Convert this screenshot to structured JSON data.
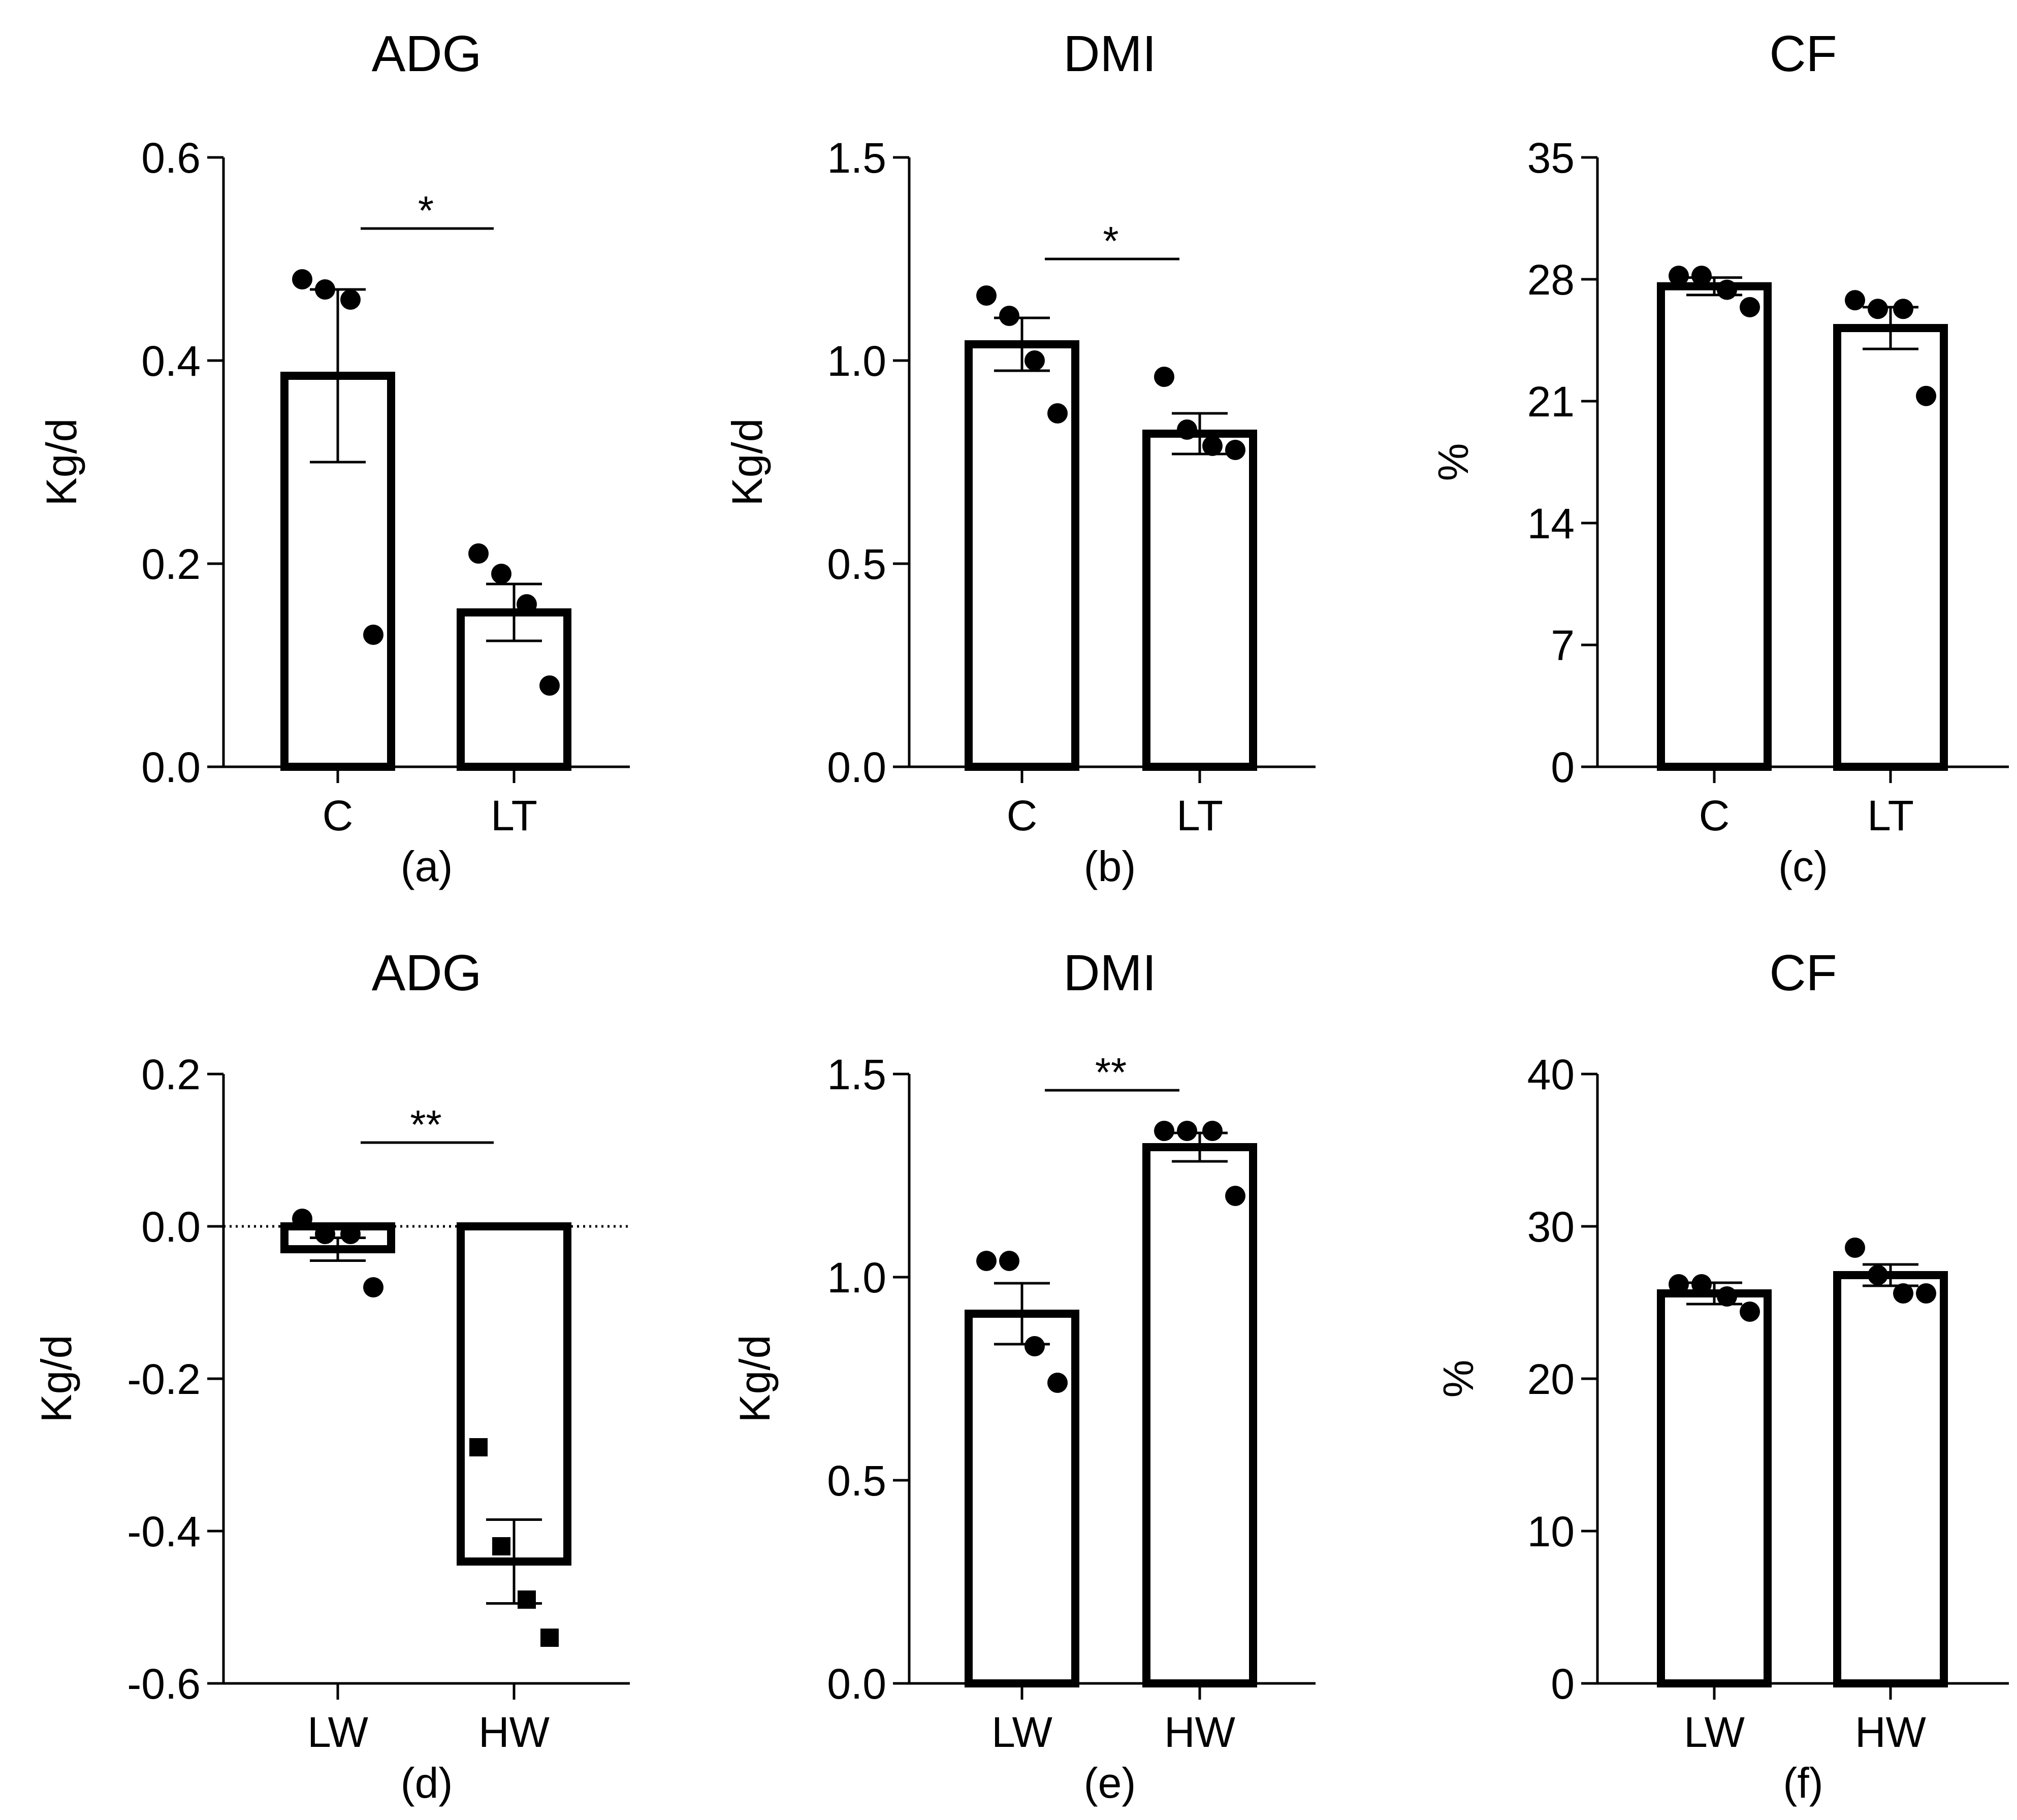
{
  "chart_data": [
    {
      "type": "bar",
      "panel": "(a)",
      "title": "ADG",
      "ylabel": "Kg/d",
      "categories": [
        "C",
        "LT"
      ],
      "values": [
        0.385,
        0.152
      ],
      "errors": [
        0.085,
        0.028
      ],
      "points": [
        [
          0.48,
          0.47,
          0.46,
          0.13
        ],
        [
          0.21,
          0.19,
          0.16,
          0.08
        ]
      ],
      "marker": [
        "circle",
        "circle"
      ],
      "ylim": [
        0,
        0.6
      ],
      "yticks": [
        0.0,
        0.2,
        0.4,
        0.6
      ],
      "ytick_labels": [
        "0.0",
        "0.2",
        "0.4",
        "0.6"
      ],
      "significance": {
        "label": "*",
        "y": 0.53
      }
    },
    {
      "type": "bar",
      "panel": "(b)",
      "title": "DMI",
      "ylabel": "Kg/d",
      "categories": [
        "C",
        "LT"
      ],
      "values": [
        1.04,
        0.82
      ],
      "errors": [
        0.065,
        0.05
      ],
      "points": [
        [
          1.16,
          1.11,
          1.0,
          0.87
        ],
        [
          0.96,
          0.83,
          0.79,
          0.78
        ]
      ],
      "marker": [
        "circle",
        "circle"
      ],
      "ylim": [
        0,
        1.5
      ],
      "yticks": [
        0.0,
        0.5,
        1.0,
        1.5
      ],
      "ytick_labels": [
        "0.0",
        "0.5",
        "1.0",
        "1.5"
      ],
      "significance": {
        "label": "*",
        "y": 1.25
      }
    },
    {
      "type": "bar",
      "panel": "(c)",
      "title": "CF",
      "ylabel": "%",
      "categories": [
        "C",
        "LT"
      ],
      "values": [
        27.6,
        25.2
      ],
      "errors": [
        0.5,
        1.2
      ],
      "points": [
        [
          28.2,
          28.2,
          27.4,
          26.4
        ],
        [
          26.8,
          26.3,
          26.3,
          21.3
        ]
      ],
      "marker": [
        "circle",
        "circle"
      ],
      "ylim": [
        0,
        35
      ],
      "yticks": [
        0,
        7,
        14,
        21,
        28,
        35
      ],
      "ytick_labels": [
        "0",
        "7",
        "14",
        "21",
        "28",
        "35"
      ],
      "significance": null
    },
    {
      "type": "bar",
      "panel": "(d)",
      "title": "ADG",
      "ylabel": "Kg/d",
      "categories": [
        "LW",
        "HW"
      ],
      "values": [
        -0.03,
        -0.44
      ],
      "errors": [
        0.015,
        0.055
      ],
      "points": [
        [
          0.01,
          -0.01,
          -0.01,
          -0.08
        ],
        [
          -0.29,
          -0.42,
          -0.49,
          -0.54
        ]
      ],
      "marker": [
        "circle",
        "square"
      ],
      "ylim": [
        -0.6,
        0.2
      ],
      "yticks": [
        -0.6,
        -0.4,
        -0.2,
        0.0,
        0.2
      ],
      "ytick_labels": [
        "-0.6",
        "-0.4",
        "-0.2",
        "0.0",
        "0.2"
      ],
      "zero_line": true,
      "significance": {
        "label": "**",
        "y": 0.11
      }
    },
    {
      "type": "bar",
      "panel": "(e)",
      "title": "DMI",
      "ylabel": "Kg/d",
      "categories": [
        "LW",
        "HW"
      ],
      "values": [
        0.91,
        1.32
      ],
      "errors": [
        0.075,
        0.035
      ],
      "points": [
        [
          1.04,
          1.04,
          0.83,
          0.74
        ],
        [
          1.36,
          1.36,
          1.36,
          1.2
        ]
      ],
      "marker": [
        "circle",
        "circle"
      ],
      "ylim": [
        0,
        1.5
      ],
      "yticks": [
        0.0,
        0.5,
        1.0,
        1.5
      ],
      "ytick_labels": [
        "0.0",
        "0.5",
        "1.0",
        "1.5"
      ],
      "significance": {
        "label": "**",
        "y": 1.46
      }
    },
    {
      "type": "bar",
      "panel": "(f)",
      "title": "CF",
      "ylabel": "%",
      "categories": [
        "LW",
        "HW"
      ],
      "values": [
        25.6,
        26.8
      ],
      "errors": [
        0.7,
        0.7
      ],
      "points": [
        [
          26.2,
          26.2,
          25.4,
          24.4
        ],
        [
          28.6,
          26.8,
          25.6,
          25.6
        ]
      ],
      "marker": [
        "circle",
        "circle"
      ],
      "ylim": [
        0,
        40
      ],
      "yticks": [
        0,
        10,
        20,
        30,
        40
      ],
      "ytick_labels": [
        "0",
        "10",
        "20",
        "30",
        "40"
      ],
      "significance": null
    }
  ]
}
